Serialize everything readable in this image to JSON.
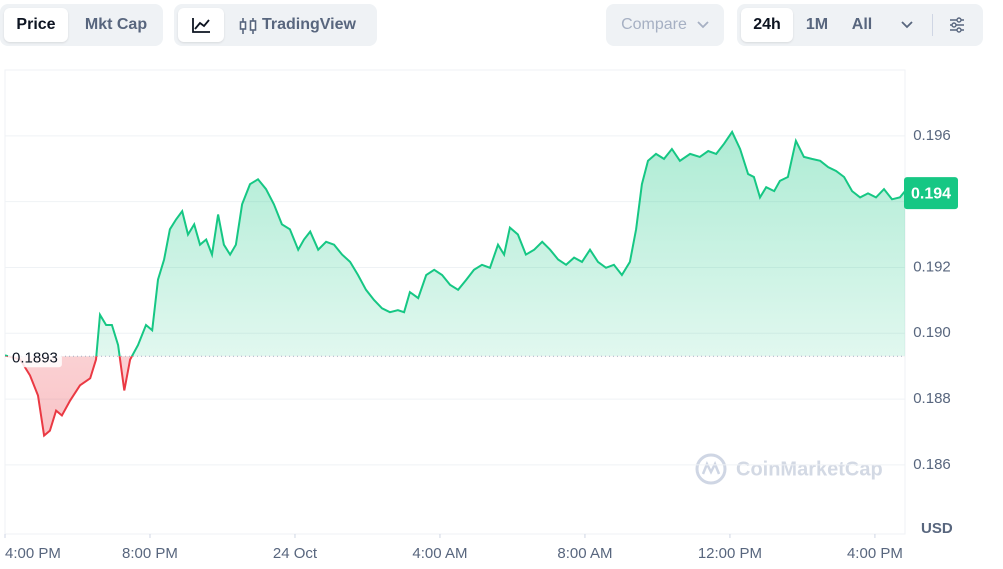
{
  "toolbar": {
    "view_tabs": [
      "Price",
      "Mkt Cap"
    ],
    "chart_tabs": [
      "TradingView"
    ],
    "compare": "Compare",
    "ranges": [
      "24h",
      "1M",
      "All"
    ]
  },
  "chart_data": {
    "type": "line",
    "color_up": "#16c784",
    "color_down": "#ea3943",
    "baseline": {
      "value": 0.1893,
      "label": "0.1893"
    },
    "current_price": {
      "value": 0.19426,
      "label": "0.194"
    },
    "y_unit": "USD",
    "watermark": "CoinMarketCap",
    "grid": true,
    "xlim": [
      -0.83,
      24
    ],
    "ylim": [
      0.1839,
      0.198
    ],
    "xticks": [
      {
        "value": -0.83,
        "label": "4:00 PM"
      },
      {
        "value": 3.17,
        "label": "8:00 PM"
      },
      {
        "value": 7.17,
        "label": "24 Oct"
      },
      {
        "value": 11.17,
        "label": "4:00 AM"
      },
      {
        "value": 15.17,
        "label": "8:00 AM"
      },
      {
        "value": 19.17,
        "label": "12:00 PM"
      },
      {
        "value": 23.17,
        "label": "4:00 PM"
      }
    ],
    "yticks": [
      0.186,
      0.188,
      {
        "value": 0.19,
        "label": "0.190"
      },
      0.192,
      0.194,
      0.196
    ],
    "x": [
      -0.83,
      -0.41,
      -0.14,
      0.08,
      0.25,
      0.41,
      0.58,
      0.74,
      0.97,
      1.24,
      1.52,
      1.68,
      1.79,
      1.96,
      2.12,
      2.29,
      2.46,
      2.62,
      2.84,
      3.06,
      3.23,
      3.39,
      3.56,
      3.72,
      3.89,
      4.06,
      4.22,
      4.39,
      4.55,
      4.72,
      4.88,
      5.05,
      5.21,
      5.38,
      5.54,
      5.71,
      5.93,
      6.15,
      6.37,
      6.59,
      6.81,
      7.03,
      7.26,
      7.42,
      7.59,
      7.81,
      8.03,
      8.25,
      8.47,
      8.69,
      8.91,
      9.13,
      9.35,
      9.57,
      9.79,
      10.01,
      10.18,
      10.34,
      10.57,
      10.79,
      11.01,
      11.23,
      11.45,
      11.67,
      11.89,
      12.11,
      12.33,
      12.55,
      12.77,
      12.94,
      13.1,
      13.32,
      13.54,
      13.77,
      13.99,
      14.21,
      14.43,
      14.65,
      14.87,
      15.09,
      15.31,
      15.53,
      15.75,
      15.97,
      16.19,
      16.41,
      16.58,
      16.74,
      16.91,
      17.13,
      17.35,
      17.57,
      17.79,
      18.07,
      18.34,
      18.57,
      18.79,
      19.01,
      19.23,
      19.45,
      19.67,
      19.83,
      20.0,
      20.17,
      20.39,
      20.55,
      20.77,
      20.99,
      21.21,
      21.43,
      21.66,
      21.88,
      22.1,
      22.32,
      22.54,
      22.76,
      22.98,
      23.2,
      23.42,
      23.64,
      23.86,
      24.0
    ],
    "values": [
      0.18933,
      0.1892,
      0.18872,
      0.18811,
      0.18689,
      0.18704,
      0.18765,
      0.1875,
      0.18796,
      0.18842,
      0.18863,
      0.1892,
      0.19056,
      0.19025,
      0.19025,
      0.18964,
      0.18826,
      0.1892,
      0.18964,
      0.19025,
      0.19009,
      0.19163,
      0.19224,
      0.19316,
      0.19346,
      0.19371,
      0.193,
      0.19331,
      0.19269,
      0.19285,
      0.19239,
      0.19361,
      0.19269,
      0.19239,
      0.19269,
      0.19392,
      0.19453,
      0.19468,
      0.19438,
      0.19392,
      0.19331,
      0.19316,
      0.19254,
      0.19285,
      0.19309,
      0.19254,
      0.19278,
      0.19269,
      0.19239,
      0.19217,
      0.19177,
      0.19132,
      0.19101,
      0.19076,
      0.19064,
      0.1907,
      0.19064,
      0.19125,
      0.19107,
      0.19177,
      0.19193,
      0.19177,
      0.19147,
      0.19132,
      0.19162,
      0.19193,
      0.19208,
      0.19199,
      0.19269,
      0.19239,
      0.19321,
      0.193,
      0.19239,
      0.19254,
      0.19278,
      0.19254,
      0.19224,
      0.19208,
      0.1923,
      0.19217,
      0.19254,
      0.19217,
      0.19199,
      0.19208,
      0.19177,
      0.19217,
      0.19316,
      0.19453,
      0.19524,
      0.19545,
      0.1953,
      0.1956,
      0.19524,
      0.19545,
      0.19536,
      0.19554,
      0.19545,
      0.19576,
      0.19612,
      0.1956,
      0.19484,
      0.19475,
      0.19413,
      0.19444,
      0.19432,
      0.19463,
      0.19475,
      0.19585,
      0.19536,
      0.1953,
      0.19524,
      0.19505,
      0.19493,
      0.19475,
      0.19432,
      0.19413,
      0.19425,
      0.19413,
      0.19438,
      0.19407,
      0.19413,
      0.19432
    ]
  }
}
